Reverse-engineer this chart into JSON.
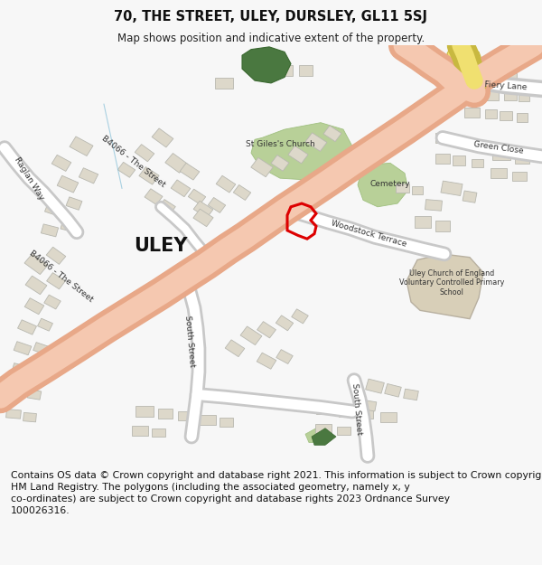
{
  "title": "70, THE STREET, ULEY, DURSLEY, GL11 5SJ",
  "subtitle": "Map shows position and indicative extent of the property.",
  "footer": "Contains OS data © Crown copyright and database right 2021. This information is subject to Crown copyright and database rights 2023 and is reproduced with the permission of\nHM Land Registry. The polygons (including the associated geometry, namely x, y\nco-ordinates) are subject to Crown copyright and database rights 2023 Ordnance Survey\n100026316.",
  "bg_color": "#f7f7f7",
  "map_bg": "#f8f8f8",
  "title_fontsize": 10.5,
  "subtitle_fontsize": 8.5,
  "footer_fontsize": 7.8,
  "road_main_outer": "#e8a888",
  "road_main_inner": "#f5c8b0",
  "road_sec_outer": "#c8c8c8",
  "road_sec_inner": "#ffffff",
  "yellow_outer": "#c8b840",
  "yellow_inner": "#f0e070",
  "green_light": "#b8d098",
  "green_dark": "#4a7840",
  "building_fill": "#ddd8ca",
  "building_edge": "#b8b8b0",
  "school_fill": "#d8cfb8",
  "school_edge": "#b8b0a0",
  "plot_color": "#dd0000",
  "text_color": "#333333",
  "label_fontsize": 6.8
}
